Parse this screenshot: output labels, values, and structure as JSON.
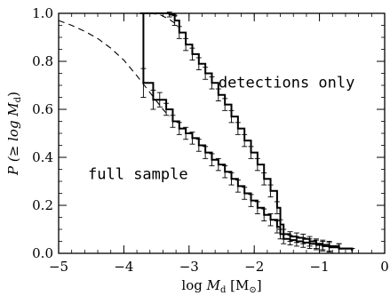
{
  "chart_data": {
    "type": "line",
    "title": "",
    "xlabel": "log M_d [M_☉]",
    "ylabel": "P (≥ log M_d)",
    "xlabel_parts": {
      "prefix": "log ",
      "var": "M",
      "sub": "d",
      "unit": " [M",
      "unit_sub": "⊙",
      "close": "]"
    },
    "ylabel_parts": {
      "prefix": "P (≥ log ",
      "var": "M",
      "sub": "d",
      "close": ")"
    },
    "xlim": [
      -5,
      0
    ],
    "ylim": [
      0,
      1
    ],
    "xticks": [
      -5,
      -4,
      -3,
      -2,
      -1,
      0
    ],
    "xtick_labels": [
      "−5",
      "−4",
      "−3",
      "−2",
      "−1",
      "0"
    ],
    "yticks": [
      0,
      0.2,
      0.4,
      0.6,
      0.8,
      1.0
    ],
    "ytick_labels": [
      "0.0",
      "0.2",
      "0.4",
      "0.6",
      "0.8",
      "1.0"
    ],
    "grid": false,
    "legend": "none",
    "annotations": [
      {
        "text": "detections only",
        "x": -2.55,
        "y": 0.69
      },
      {
        "text": "full sample",
        "x": -4.55,
        "y": 0.31
      }
    ],
    "series": [
      {
        "style": "step-with-errorbars",
        "x": [
          -3.72,
          -3.3,
          -3.22,
          -3.15,
          -3.05,
          -2.95,
          -2.85,
          -2.75,
          -2.65,
          -2.55,
          -2.45,
          -2.35,
          -2.25,
          -2.15,
          -2.05,
          -1.95,
          -1.85,
          -1.75,
          -1.65,
          -1.6,
          -1.55,
          -1.45,
          -1.35,
          -1.25,
          -1.15,
          -1.05,
          -0.95,
          -0.85,
          -0.7,
          -0.5
        ],
        "y": [
          1.0,
          0.995,
          0.97,
          0.92,
          0.87,
          0.83,
          0.79,
          0.75,
          0.71,
          0.66,
          0.62,
          0.57,
          0.52,
          0.47,
          0.42,
          0.37,
          0.31,
          0.26,
          0.19,
          0.12,
          0.08,
          0.07,
          0.065,
          0.06,
          0.05,
          0.04,
          0.035,
          0.03,
          0.02,
          0.01
        ],
        "err": [
          0.0,
          0.01,
          0.02,
          0.025,
          0.025,
          0.025,
          0.025,
          0.025,
          0.025,
          0.025,
          0.025,
          0.025,
          0.025,
          0.025,
          0.025,
          0.025,
          0.025,
          0.025,
          0.025,
          0.02,
          0.02,
          0.02,
          0.02,
          0.02,
          0.02,
          0.02,
          0.02,
          0.02,
          0.02,
          0.01
        ]
      },
      {
        "style": "step-with-errorbars",
        "x": [
          -3.75,
          -3.7,
          -3.55,
          -3.45,
          -3.35,
          -3.25,
          -3.15,
          -3.05,
          -2.95,
          -2.85,
          -2.75,
          -2.65,
          -2.55,
          -2.45,
          -2.35,
          -2.25,
          -2.15,
          -2.05,
          -1.95,
          -1.85,
          -1.75,
          -1.65,
          -1.6,
          -1.55,
          -1.45,
          -1.35,
          -1.25,
          -1.15,
          -1.05,
          -0.95,
          -0.85,
          -0.7,
          -0.5
        ],
        "y": [
          1.0,
          0.71,
          0.64,
          0.64,
          0.6,
          0.55,
          0.52,
          0.5,
          0.48,
          0.45,
          0.42,
          0.39,
          0.37,
          0.34,
          0.31,
          0.28,
          0.25,
          0.22,
          0.19,
          0.16,
          0.14,
          0.11,
          0.08,
          0.06,
          0.055,
          0.05,
          0.045,
          0.04,
          0.035,
          0.03,
          0.025,
          0.02,
          0.01
        ],
        "err": [
          0.0,
          0.06,
          0.04,
          0.03,
          0.025,
          0.025,
          0.025,
          0.025,
          0.025,
          0.025,
          0.025,
          0.025,
          0.025,
          0.025,
          0.025,
          0.025,
          0.025,
          0.025,
          0.025,
          0.025,
          0.025,
          0.025,
          0.02,
          0.02,
          0.02,
          0.02,
          0.02,
          0.02,
          0.02,
          0.02,
          0.02,
          0.02,
          0.01
        ]
      },
      {
        "style": "dashed",
        "x": [
          -5.0,
          -4.8,
          -4.6,
          -4.4,
          -4.2,
          -4.0,
          -3.8,
          -3.6,
          -3.4,
          -3.3
        ],
        "y": [
          0.97,
          0.95,
          0.925,
          0.895,
          0.855,
          0.805,
          0.74,
          0.67,
          0.6,
          0.57
        ]
      },
      {
        "style": "dashed",
        "x": [
          -3.6,
          -3.45,
          -3.3,
          -3.2
        ],
        "y": [
          1.0,
          0.995,
          0.975,
          0.955
        ]
      }
    ],
    "colors": {
      "line": "#000000",
      "background": "#ffffff"
    }
  }
}
